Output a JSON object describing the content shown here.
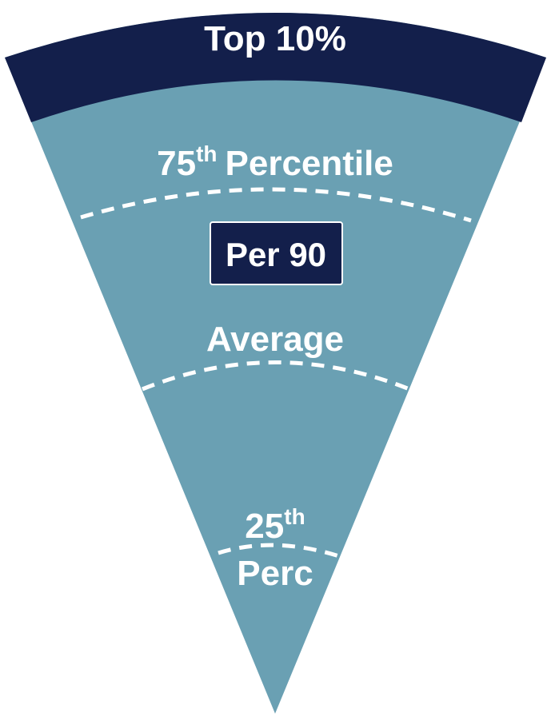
{
  "colors": {
    "top_band": "#131f4b",
    "wedge_body": "#6aa0b3",
    "dash_line": "#ffffff",
    "label_text": "#ffffff",
    "badge_fill": "#131f4b",
    "badge_border": "#ffffff"
  },
  "bands": {
    "top": {
      "label": "Top 10%"
    },
    "p75": {
      "number": "75",
      "suffix": "th",
      "word": "Percentile"
    },
    "average": {
      "label": "Average"
    },
    "p25": {
      "number": "25",
      "suffix": "th",
      "word": "Perc"
    }
  },
  "badge": {
    "label": "Per 90"
  }
}
